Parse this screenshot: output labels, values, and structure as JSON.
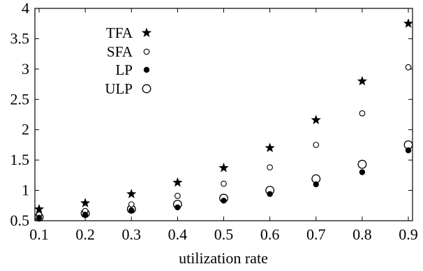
{
  "chart_data": {
    "type": "scatter",
    "xlabel": "utilization rate",
    "ylabel": "",
    "xlim": [
      0.1,
      0.9
    ],
    "ylim": [
      0.5,
      4
    ],
    "xticks": [
      "0.1",
      "0.2",
      "0.3",
      "0.4",
      "0.5",
      "0.6",
      "0.7",
      "0.8",
      "0.9"
    ],
    "yticks": [
      "0.5",
      "1",
      "1.5",
      "2",
      "2.5",
      "3",
      "3.5",
      "4"
    ],
    "legend_position": "top-left",
    "grid": false,
    "x": [
      0.1,
      0.2,
      0.3,
      0.4,
      0.5,
      0.6,
      0.7,
      0.8,
      0.9
    ],
    "series": [
      {
        "name": "TFA",
        "marker": "star",
        "values": [
          0.69,
          0.79,
          0.94,
          1.13,
          1.37,
          1.7,
          2.16,
          2.8,
          3.75
        ]
      },
      {
        "name": "SFA",
        "marker": "small-open-circle",
        "values": [
          0.6,
          0.66,
          0.77,
          0.91,
          1.11,
          1.38,
          1.75,
          2.27,
          3.03
        ]
      },
      {
        "name": "LP",
        "marker": "filled-circle",
        "values": [
          0.55,
          0.6,
          0.67,
          0.72,
          0.83,
          0.94,
          1.1,
          1.3,
          1.66
        ]
      },
      {
        "name": "ULP",
        "marker": "large-open-circle",
        "values": [
          0.56,
          0.62,
          0.69,
          0.77,
          0.87,
          1.0,
          1.19,
          1.43,
          1.75
        ]
      }
    ]
  }
}
